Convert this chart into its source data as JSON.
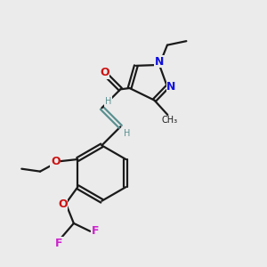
{
  "background_color": "#ebebeb",
  "bond_color": "#1a1a1a",
  "nitrogen_color": "#1010dd",
  "oxygen_color": "#cc1111",
  "fluorine_color": "#cc22cc",
  "teal_color": "#5a9090",
  "figsize": [
    3.0,
    3.0
  ],
  "dpi": 100,
  "xlim": [
    0,
    10
  ],
  "ylim": [
    0,
    10
  ]
}
